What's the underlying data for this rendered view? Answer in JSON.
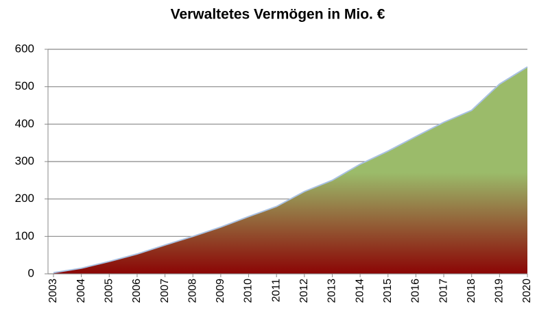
{
  "chart_data": {
    "type": "area",
    "title": "Verwaltetes Vermögen in Mio. €",
    "x": [
      2003,
      2004,
      2005,
      2006,
      2007,
      2008,
      2009,
      2010,
      2011,
      2012,
      2013,
      2014,
      2015,
      2016,
      2017,
      2018,
      2019,
      2020
    ],
    "values": [
      3,
      15,
      33,
      53,
      77,
      100,
      125,
      153,
      180,
      220,
      250,
      293,
      328,
      367,
      405,
      437,
      507,
      553
    ],
    "xlim": [
      2003,
      2020
    ],
    "xticks": [
      2003,
      2004,
      2005,
      2006,
      2007,
      2008,
      2009,
      2010,
      2011,
      2012,
      2013,
      2014,
      2015,
      2016,
      2017,
      2018,
      2019,
      2020
    ],
    "ylim": [
      0,
      600
    ],
    "yticks": [
      0,
      100,
      200,
      300,
      400,
      500,
      600
    ],
    "grid": true,
    "colors": [
      "#9bbb6a",
      "#8b0505"
    ],
    "line_color": "#a9c1e2"
  }
}
